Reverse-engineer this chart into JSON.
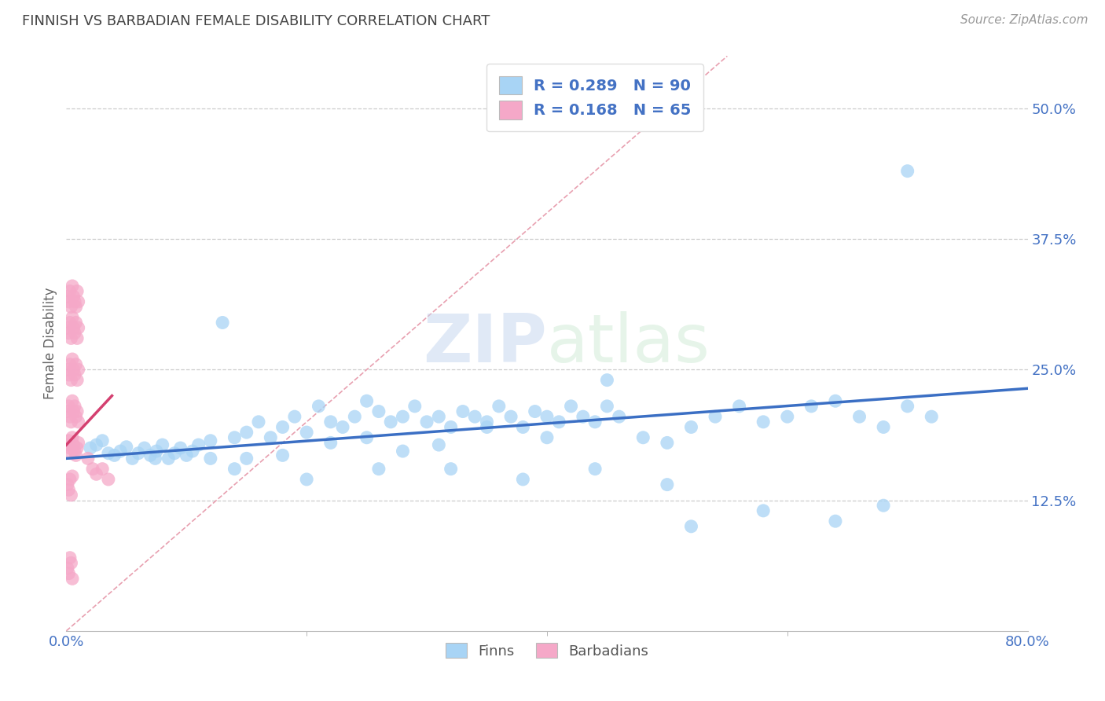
{
  "title": "FINNISH VS BARBADIAN FEMALE DISABILITY CORRELATION CHART",
  "source_text": "Source: ZipAtlas.com",
  "ylabel": "Female Disability",
  "xlim": [
    0.0,
    0.8
  ],
  "ylim": [
    0.0,
    0.55
  ],
  "yticks": [
    0.125,
    0.25,
    0.375,
    0.5
  ],
  "ytick_labels": [
    "12.5%",
    "25.0%",
    "37.5%",
    "50.0%"
  ],
  "xtick_labels": [
    "0.0%",
    "80.0%"
  ],
  "finn_color": "#A8D4F5",
  "barbadian_color": "#F5A8C8",
  "finn_line_color": "#3B6FC4",
  "barbadian_line_color": "#D44070",
  "diag_line_color": "#E8A0B0",
  "finn_R": 0.289,
  "finn_N": 90,
  "barbadian_R": 0.168,
  "barbadian_N": 65,
  "watermark_zip": "ZIP",
  "watermark_atlas": "atlas",
  "legend_finn_label": "Finns",
  "legend_barbadian_label": "Barbadians",
  "finn_line_x0": 0.0,
  "finn_line_x1": 0.8,
  "finn_line_y0": 0.165,
  "finn_line_y1": 0.232,
  "barb_line_x0": 0.0,
  "barb_line_x1": 0.038,
  "barb_line_y0": 0.178,
  "barb_line_y1": 0.225,
  "finn_x": [
    0.02,
    0.025,
    0.03,
    0.035,
    0.04,
    0.045,
    0.05,
    0.055,
    0.06,
    0.065,
    0.07,
    0.075,
    0.08,
    0.085,
    0.09,
    0.095,
    0.1,
    0.105,
    0.11,
    0.12,
    0.13,
    0.14,
    0.15,
    0.16,
    0.17,
    0.18,
    0.19,
    0.2,
    0.21,
    0.22,
    0.23,
    0.24,
    0.25,
    0.26,
    0.27,
    0.28,
    0.29,
    0.3,
    0.31,
    0.32,
    0.33,
    0.34,
    0.35,
    0.36,
    0.37,
    0.38,
    0.39,
    0.4,
    0.41,
    0.42,
    0.43,
    0.44,
    0.45,
    0.46,
    0.48,
    0.5,
    0.52,
    0.54,
    0.56,
    0.58,
    0.6,
    0.62,
    0.64,
    0.66,
    0.68,
    0.7,
    0.72,
    0.074,
    0.12,
    0.15,
    0.18,
    0.22,
    0.25,
    0.28,
    0.31,
    0.35,
    0.4,
    0.45,
    0.52,
    0.58,
    0.64,
    0.68,
    0.7,
    0.14,
    0.2,
    0.26,
    0.32,
    0.38,
    0.44,
    0.5
  ],
  "finn_y": [
    0.175,
    0.178,
    0.182,
    0.17,
    0.168,
    0.172,
    0.176,
    0.165,
    0.17,
    0.175,
    0.168,
    0.172,
    0.178,
    0.165,
    0.17,
    0.175,
    0.168,
    0.172,
    0.178,
    0.182,
    0.295,
    0.185,
    0.19,
    0.2,
    0.185,
    0.195,
    0.205,
    0.19,
    0.215,
    0.2,
    0.195,
    0.205,
    0.22,
    0.21,
    0.2,
    0.205,
    0.215,
    0.2,
    0.205,
    0.195,
    0.21,
    0.205,
    0.2,
    0.215,
    0.205,
    0.195,
    0.21,
    0.205,
    0.2,
    0.215,
    0.205,
    0.2,
    0.215,
    0.205,
    0.185,
    0.18,
    0.195,
    0.205,
    0.215,
    0.2,
    0.205,
    0.215,
    0.22,
    0.205,
    0.195,
    0.215,
    0.205,
    0.165,
    0.165,
    0.165,
    0.168,
    0.18,
    0.185,
    0.172,
    0.178,
    0.195,
    0.185,
    0.24,
    0.1,
    0.115,
    0.105,
    0.12,
    0.44,
    0.155,
    0.145,
    0.155,
    0.155,
    0.145,
    0.155,
    0.14
  ],
  "barb_x": [
    0.001,
    0.002,
    0.003,
    0.004,
    0.005,
    0.006,
    0.007,
    0.008,
    0.009,
    0.01,
    0.001,
    0.002,
    0.003,
    0.004,
    0.005,
    0.006,
    0.007,
    0.008,
    0.009,
    0.01,
    0.001,
    0.002,
    0.003,
    0.004,
    0.005,
    0.006,
    0.007,
    0.008,
    0.009,
    0.01,
    0.001,
    0.002,
    0.003,
    0.004,
    0.005,
    0.006,
    0.007,
    0.008,
    0.009,
    0.01,
    0.001,
    0.002,
    0.003,
    0.004,
    0.005,
    0.006,
    0.007,
    0.008,
    0.009,
    0.01,
    0.001,
    0.002,
    0.003,
    0.004,
    0.005,
    0.018,
    0.022,
    0.025,
    0.03,
    0.035,
    0.001,
    0.002,
    0.003,
    0.004,
    0.005
  ],
  "barb_y": [
    0.178,
    0.182,
    0.175,
    0.17,
    0.185,
    0.178,
    0.172,
    0.168,
    0.175,
    0.18,
    0.21,
    0.215,
    0.205,
    0.2,
    0.22,
    0.21,
    0.215,
    0.205,
    0.21,
    0.2,
    0.25,
    0.245,
    0.255,
    0.24,
    0.26,
    0.25,
    0.245,
    0.255,
    0.24,
    0.25,
    0.29,
    0.285,
    0.295,
    0.28,
    0.3,
    0.29,
    0.285,
    0.295,
    0.28,
    0.29,
    0.32,
    0.315,
    0.325,
    0.31,
    0.33,
    0.32,
    0.315,
    0.31,
    0.325,
    0.315,
    0.14,
    0.135,
    0.145,
    0.13,
    0.148,
    0.165,
    0.155,
    0.15,
    0.155,
    0.145,
    0.06,
    0.055,
    0.07,
    0.065,
    0.05
  ]
}
